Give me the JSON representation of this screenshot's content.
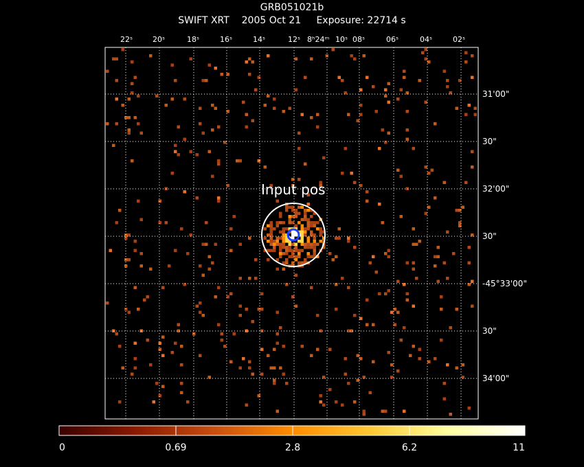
{
  "header": {
    "target": "GRB051021b",
    "instrument": "SWIFT XRT",
    "date": "2005 Oct 21",
    "exposure": "Exposure: 22714 s"
  },
  "chart_data": {
    "type": "heatmap",
    "title": "GRB051021b",
    "subtitle": "SWIFT XRT   2005 Oct 21    Exposure: 22714 s",
    "ra_ticks": [
      "22ˢ",
      "20ˢ",
      "18ˢ",
      "16ˢ",
      "14ˢ",
      "12ˢ",
      "8ʰ24ᵐ",
      "10ˢ",
      "08ˢ",
      "06ˢ",
      "04ˢ",
      "02ˢ"
    ],
    "dec_ticks": [
      "31'00\"",
      "30\"",
      "32'00\"",
      "30\"",
      "-45°33'00\"",
      "30\"",
      "34'00\""
    ],
    "grid": true,
    "annotation": "Input pos",
    "source": {
      "region_radius_arcsec": 20,
      "error_circle_radius_arcsec": 3
    },
    "colorbar": {
      "ticks": [
        "0",
        "0.69",
        "2.8",
        "6.2",
        "11"
      ],
      "tick_values": [
        0,
        0.69,
        2.8,
        6.2,
        11
      ],
      "range": [
        0,
        11
      ],
      "colors": [
        "#3a0000",
        "#8b1a00",
        "#c84e10",
        "#ff8c00",
        "#ffc832",
        "#ffffa0",
        "#ffffff"
      ]
    }
  }
}
